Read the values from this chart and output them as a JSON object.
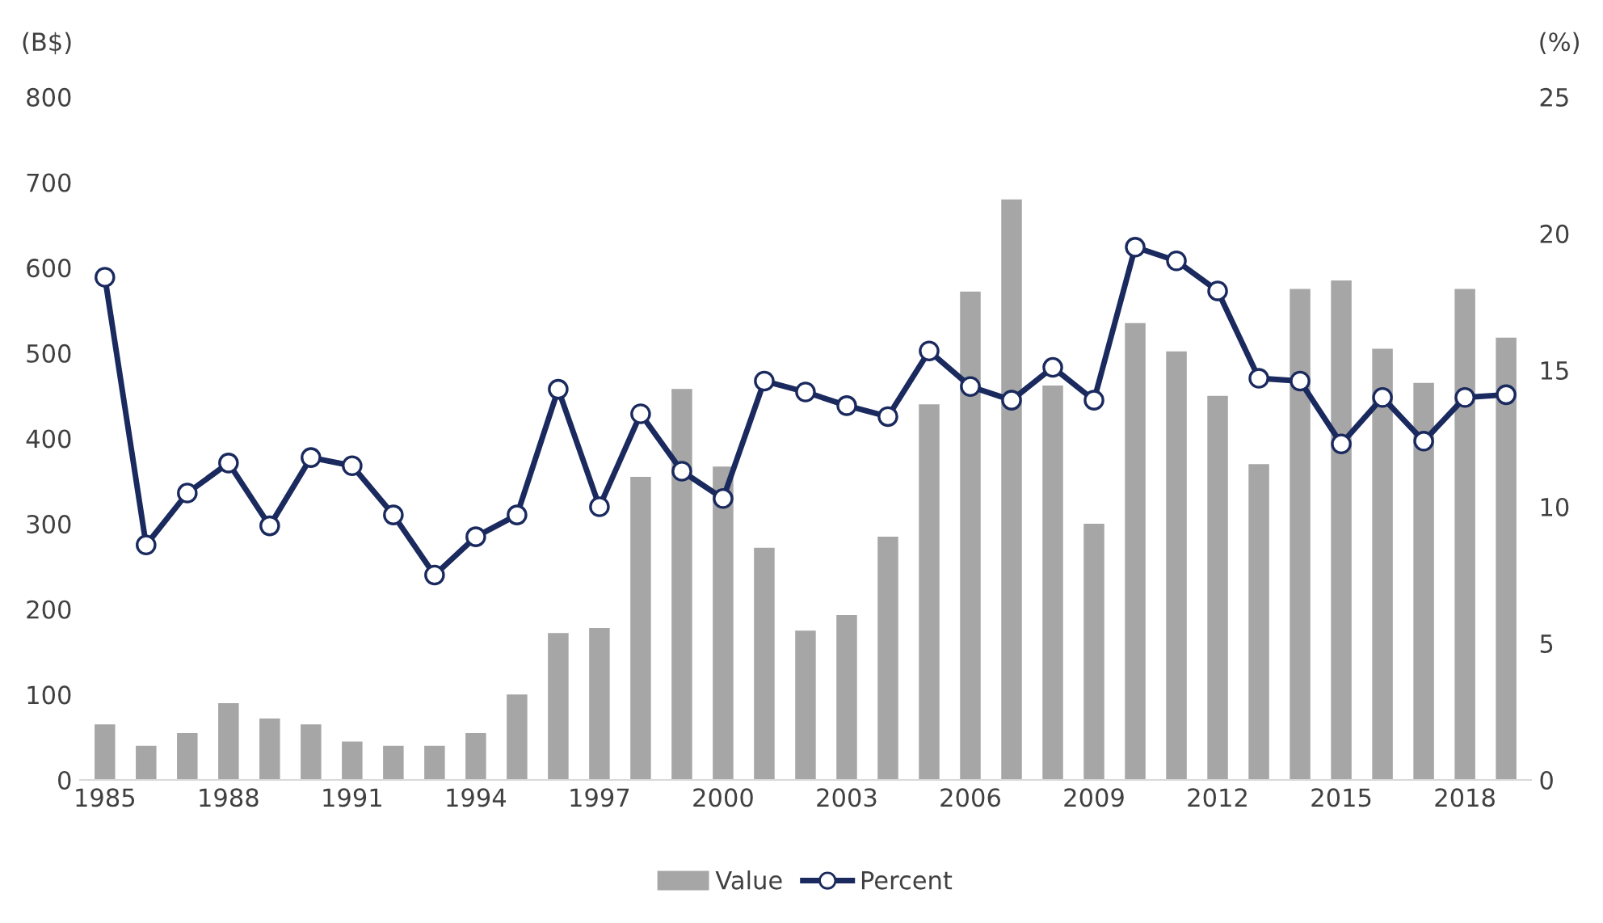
{
  "chart_data": {
    "type": "bar",
    "ylabel": "(B$)",
    "y2label": "(%)",
    "x": [
      1985,
      1986,
      1987,
      1988,
      1989,
      1990,
      1991,
      1992,
      1993,
      1994,
      1995,
      1996,
      1997,
      1998,
      1999,
      2000,
      2001,
      2002,
      2003,
      2004,
      2005,
      2006,
      2007,
      2008,
      2009,
      2010,
      2011,
      2012,
      2013,
      2014,
      2015,
      2016,
      2017,
      2018,
      2019
    ],
    "series": [
      {
        "name": "Value",
        "color": "#a6a6a6",
        "values": [
          65,
          40,
          55,
          90,
          72,
          65,
          45,
          40,
          40,
          55,
          100,
          172,
          178,
          355,
          458,
          367,
          272,
          175,
          193,
          285,
          440,
          572,
          680,
          462,
          300,
          535,
          502,
          450,
          370,
          575,
          585,
          505,
          465,
          575,
          518
        ]
      },
      {
        "name": "Percent",
        "type": "line",
        "axis": "y2",
        "color": "#1a2a5e",
        "marker": "circle",
        "values": [
          18.4,
          8.6,
          10.5,
          11.6,
          9.3,
          11.8,
          11.5,
          9.7,
          7.5,
          8.9,
          9.7,
          14.3,
          10.0,
          13.4,
          11.3,
          10.3,
          14.6,
          14.2,
          13.7,
          13.3,
          15.7,
          14.4,
          13.9,
          15.1,
          13.9,
          19.5,
          19.0,
          17.9,
          14.7,
          14.6,
          12.3,
          14.0,
          12.4,
          14.0,
          14.1
        ]
      }
    ],
    "xlim": [
      1984.4,
      2019.6
    ],
    "xticks": [
      1985,
      1988,
      1991,
      1994,
      1997,
      2000,
      2003,
      2006,
      2009,
      2012,
      2015,
      2018
    ],
    "ylim": [
      0,
      800
    ],
    "yticks": [
      0,
      100,
      200,
      300,
      400,
      500,
      600,
      700,
      800
    ],
    "y2lim": [
      0,
      25
    ],
    "y2ticks": [
      0,
      5,
      10,
      15,
      20,
      25
    ],
    "grid": false,
    "legend": "bottom"
  }
}
